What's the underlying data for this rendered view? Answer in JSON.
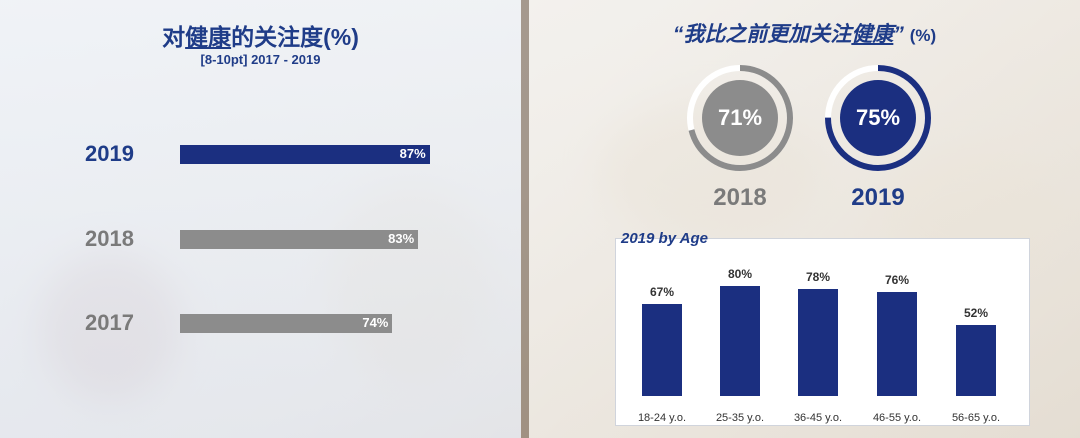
{
  "left_title_part1": "对",
  "left_title_underlined": "健康",
  "left_title_part2": "的关注度(%)",
  "left_subtitle": "[8-10pt] 2017 - 2019",
  "right_title_part1": "“我比之前更加关注",
  "right_title_underlined": "健康",
  "right_title_part2": "”",
  "right_title_pct": "(%)",
  "colors": {
    "navy": "#1b2f80",
    "gray": "#8c8c8c",
    "text_gray": "#7a7a7a"
  },
  "chart_data": [
    {
      "type": "bar",
      "orientation": "horizontal",
      "title": "对健康的关注度(%)",
      "subtitle": "[8-10pt] 2017 - 2019",
      "categories": [
        "2019",
        "2018",
        "2017"
      ],
      "values": [
        87,
        83,
        74
      ],
      "value_labels": [
        "87%",
        "83%",
        "74%"
      ],
      "xlim": [
        0,
        100
      ]
    },
    {
      "type": "pie",
      "style": "ring",
      "title": "“我比之前更加关注健康” (%)",
      "categories": [
        "2018",
        "2019"
      ],
      "values": [
        71,
        75
      ],
      "value_labels": [
        "71%",
        "75%"
      ]
    },
    {
      "type": "bar",
      "title": "2019 by Age",
      "categories": [
        "18-24 y.o.",
        "25-35 y.o.",
        "36-45 y.o.",
        "46-55 y.o.",
        "56-65 y.o."
      ],
      "values": [
        67,
        80,
        78,
        76,
        52
      ],
      "value_labels": [
        "67%",
        "80%",
        "78%",
        "76%",
        "52%"
      ],
      "ylim": [
        0,
        100
      ]
    }
  ]
}
